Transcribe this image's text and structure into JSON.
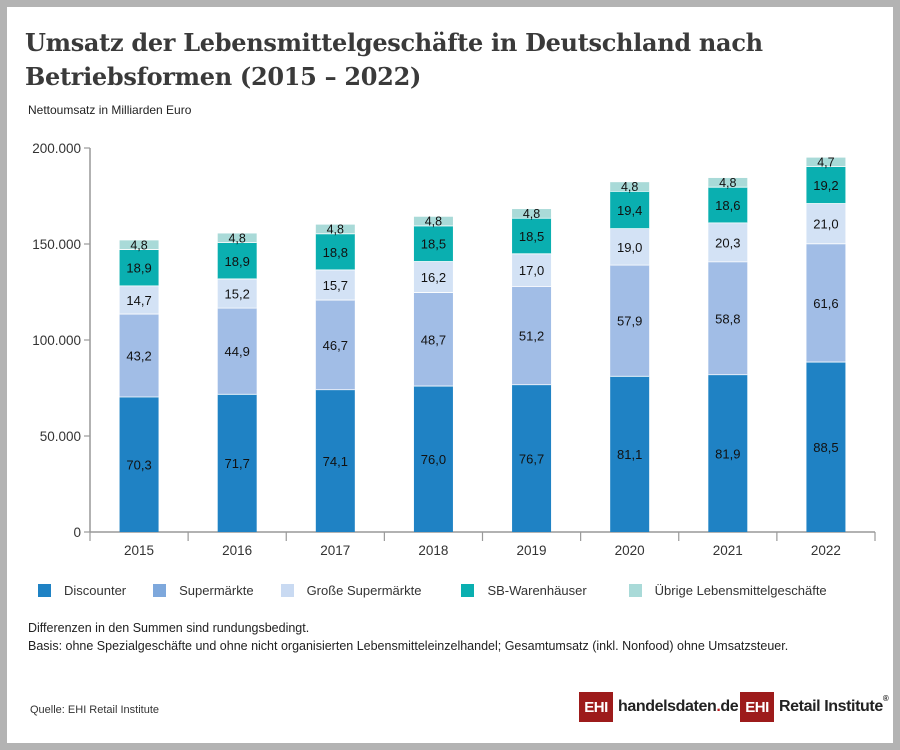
{
  "header": {
    "title": "Umsatz der Lebensmittelgeschäfte in Deutschland nach Betriebsformen (2015 – 2022)",
    "subtitle": "Nettoumsatz in Milliarden Euro"
  },
  "chart_data": {
    "type": "bar",
    "stacked": true,
    "title": "Umsatz der Lebensmittelgeschäfte in Deutschland nach Betriebsformen (2015 – 2022)",
    "subtitle": "Nettoumsatz in Milliarden Euro",
    "xlabel": "",
    "ylabel": "",
    "categories": [
      "2015",
      "2016",
      "2017",
      "2018",
      "2019",
      "2020",
      "2021",
      "2022"
    ],
    "ylim": [
      0,
      200000
    ],
    "yticks": [
      0,
      50000,
      100000,
      150000,
      200000
    ],
    "ytick_labels": [
      "0",
      "50.000",
      "100.000",
      "150.000",
      "200.000"
    ],
    "grid": false,
    "legend_position": "bottom",
    "series": [
      {
        "name": "Discounter",
        "color": "#1f82c4",
        "values": [
          70.3,
          71.7,
          74.1,
          76.0,
          76.7,
          81.1,
          81.9,
          88.5
        ],
        "labels": [
          "70,3",
          "71,7",
          "74,1",
          "76,0",
          "76,7",
          "81,1",
          "81,9",
          "88,5"
        ]
      },
      {
        "name": "Supermärkte",
        "color": "#a1bde6",
        "values": [
          43.2,
          44.9,
          46.7,
          48.7,
          51.2,
          57.9,
          58.8,
          61.6
        ],
        "labels": [
          "43,2",
          "44,9",
          "46,7",
          "48,7",
          "51,2",
          "57,9",
          "58,8",
          "61,6"
        ]
      },
      {
        "name": "Große Supermärkte",
        "color": "#d3e2f5",
        "values": [
          14.7,
          15.2,
          15.7,
          16.2,
          17.0,
          19.0,
          20.3,
          21.0
        ],
        "labels": [
          "14,7",
          "15,2",
          "15,7",
          "16,2",
          "17,0",
          "19,0",
          "20,3",
          "21,0"
        ]
      },
      {
        "name": "SB-Warenhäuser",
        "color": "#0aafb0",
        "values": [
          18.9,
          18.9,
          18.8,
          18.5,
          18.5,
          19.4,
          18.6,
          19.2
        ],
        "labels": [
          "18,9",
          "18,9",
          "18,8",
          "18,5",
          "18,5",
          "19,4",
          "18,6",
          "19,2"
        ]
      },
      {
        "name": "Übrige Lebensmittelgeschäfte",
        "color": "#a9dad8",
        "values": [
          4.8,
          4.8,
          4.8,
          4.8,
          4.8,
          4.8,
          4.8,
          4.7
        ],
        "labels": [
          "4,8",
          "4,8",
          "4,8",
          "4,8",
          "4,8",
          "4,8",
          "4,8",
          "4,7"
        ]
      }
    ],
    "value_scale_note": "segment values in billions of euros; axis in millions of euros"
  },
  "legend": [
    {
      "label": "Discounter",
      "color": "#1f82c4"
    },
    {
      "label": "Supermärkte",
      "color": "#7ea8dc"
    },
    {
      "label": "Große Supermärkte",
      "color": "#c9daf2"
    },
    {
      "label": "SB-Warenhäuser",
      "color": "#0aafb0"
    },
    {
      "label": "Übrige Lebensmittelgeschäfte",
      "color": "#a9dad8"
    }
  ],
  "notes": {
    "line1": "Differenzen in den Summen sind rundungsbedingt.",
    "line2": "Basis: ohne Spezialgeschäfte und ohne nicht organisierten Lebensmitteleinzelhandel; Gesamtumsatz (inkl. Nonfood) ohne Umsatzsteuer."
  },
  "footer": {
    "source": "Quelle: EHI Retail Institute",
    "logo1_box": "EHI",
    "logo1_text": "handelsdaten",
    "logo1_dot": ".",
    "logo1_tld": "de",
    "logo2_box": "EHI",
    "logo2_text": "Retail Institute",
    "logo2_reg": "®"
  }
}
